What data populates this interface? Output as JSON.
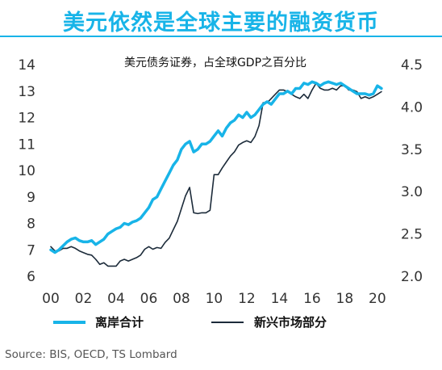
{
  "header": {
    "title": "美元依然是全球主要的融资货币"
  },
  "source": "Source: BIS, OECD, TS Lombard",
  "colors": {
    "title": "#18b4e8",
    "series_offshore": "#18b4e8",
    "series_em": "#1c2b3a"
  },
  "chart_data": {
    "type": "line",
    "title": "美元债务证券，占全球GDP之百分比",
    "x_tick_labels": [
      "00",
      "02",
      "04",
      "06",
      "08",
      "10",
      "12",
      "14",
      "16",
      "18",
      "20"
    ],
    "x_tick_values": [
      2000,
      2002,
      2004,
      2006,
      2008,
      2010,
      2012,
      2014,
      2016,
      2018,
      2020
    ],
    "xlim": [
      2000,
      2020.6
    ],
    "y_left": {
      "ylim": [
        6,
        14
      ],
      "ticks": [
        6,
        7,
        8,
        9,
        10,
        11,
        12,
        13,
        14
      ]
    },
    "y_right": {
      "ylim": [
        2.0,
        4.5
      ],
      "ticks": [
        "2.0",
        "2.5",
        "3.0",
        "3.5",
        "4.0",
        "4.5"
      ]
    },
    "grid": false,
    "legend_position": "bottom",
    "series": [
      {
        "name": "离岸合计",
        "axis": "left",
        "points": [
          [
            2000.0,
            7.0
          ],
          [
            2000.25,
            6.9
          ],
          [
            2000.5,
            7.0
          ],
          [
            2000.75,
            7.15
          ],
          [
            2001.0,
            7.3
          ],
          [
            2001.25,
            7.4
          ],
          [
            2001.5,
            7.45
          ],
          [
            2001.75,
            7.35
          ],
          [
            2002.0,
            7.3
          ],
          [
            2002.25,
            7.3
          ],
          [
            2002.5,
            7.35
          ],
          [
            2002.75,
            7.2
          ],
          [
            2003.0,
            7.3
          ],
          [
            2003.25,
            7.4
          ],
          [
            2003.5,
            7.6
          ],
          [
            2003.75,
            7.7
          ],
          [
            2004.0,
            7.8
          ],
          [
            2004.25,
            7.85
          ],
          [
            2004.5,
            8.0
          ],
          [
            2004.75,
            7.95
          ],
          [
            2005.0,
            8.05
          ],
          [
            2005.25,
            8.1
          ],
          [
            2005.5,
            8.2
          ],
          [
            2005.75,
            8.4
          ],
          [
            2006.0,
            8.6
          ],
          [
            2006.25,
            8.9
          ],
          [
            2006.5,
            9.0
          ],
          [
            2006.75,
            9.3
          ],
          [
            2007.0,
            9.6
          ],
          [
            2007.25,
            9.9
          ],
          [
            2007.5,
            10.2
          ],
          [
            2007.75,
            10.4
          ],
          [
            2008.0,
            10.8
          ],
          [
            2008.25,
            11.0
          ],
          [
            2008.5,
            11.1
          ],
          [
            2008.75,
            10.7
          ],
          [
            2009.0,
            10.8
          ],
          [
            2009.25,
            11.0
          ],
          [
            2009.5,
            11.0
          ],
          [
            2009.75,
            11.1
          ],
          [
            2010.0,
            11.3
          ],
          [
            2010.25,
            11.5
          ],
          [
            2010.5,
            11.3
          ],
          [
            2010.75,
            11.6
          ],
          [
            2011.0,
            11.8
          ],
          [
            2011.25,
            11.9
          ],
          [
            2011.5,
            12.1
          ],
          [
            2011.75,
            12.0
          ],
          [
            2012.0,
            12.2
          ],
          [
            2012.25,
            12.0
          ],
          [
            2012.5,
            12.1
          ],
          [
            2012.75,
            12.3
          ],
          [
            2013.0,
            12.5
          ],
          [
            2013.25,
            12.6
          ],
          [
            2013.5,
            12.5
          ],
          [
            2013.75,
            12.7
          ],
          [
            2014.0,
            12.9
          ],
          [
            2014.25,
            12.9
          ],
          [
            2014.5,
            13.0
          ],
          [
            2014.75,
            12.9
          ],
          [
            2015.0,
            13.1
          ],
          [
            2015.25,
            13.1
          ],
          [
            2015.5,
            13.3
          ],
          [
            2015.75,
            13.25
          ],
          [
            2016.0,
            13.35
          ],
          [
            2016.25,
            13.3
          ],
          [
            2016.5,
            13.2
          ],
          [
            2016.75,
            13.3
          ],
          [
            2017.0,
            13.35
          ],
          [
            2017.25,
            13.3
          ],
          [
            2017.5,
            13.25
          ],
          [
            2017.75,
            13.3
          ],
          [
            2018.0,
            13.2
          ],
          [
            2018.25,
            13.1
          ],
          [
            2018.5,
            13.0
          ],
          [
            2018.75,
            12.9
          ],
          [
            2019.0,
            12.9
          ],
          [
            2019.25,
            12.9
          ],
          [
            2019.5,
            12.85
          ],
          [
            2019.75,
            12.9
          ],
          [
            2020.0,
            13.2
          ],
          [
            2020.25,
            13.1
          ]
        ]
      },
      {
        "name": "新兴市场部分",
        "axis": "right",
        "points": [
          [
            2000.0,
            2.35
          ],
          [
            2000.25,
            2.3
          ],
          [
            2000.5,
            2.3
          ],
          [
            2000.75,
            2.33
          ],
          [
            2001.0,
            2.33
          ],
          [
            2001.25,
            2.35
          ],
          [
            2001.5,
            2.33
          ],
          [
            2001.75,
            2.3
          ],
          [
            2002.0,
            2.28
          ],
          [
            2002.25,
            2.26
          ],
          [
            2002.5,
            2.25
          ],
          [
            2002.75,
            2.2
          ],
          [
            2003.0,
            2.14
          ],
          [
            2003.25,
            2.16
          ],
          [
            2003.5,
            2.12
          ],
          [
            2003.75,
            2.12
          ],
          [
            2004.0,
            2.12
          ],
          [
            2004.25,
            2.18
          ],
          [
            2004.5,
            2.2
          ],
          [
            2004.75,
            2.18
          ],
          [
            2005.0,
            2.2
          ],
          [
            2005.25,
            2.22
          ],
          [
            2005.5,
            2.25
          ],
          [
            2005.75,
            2.32
          ],
          [
            2006.0,
            2.35
          ],
          [
            2006.25,
            2.32
          ],
          [
            2006.5,
            2.34
          ],
          [
            2006.75,
            2.33
          ],
          [
            2007.0,
            2.4
          ],
          [
            2007.25,
            2.45
          ],
          [
            2007.5,
            2.55
          ],
          [
            2007.75,
            2.65
          ],
          [
            2008.0,
            2.8
          ],
          [
            2008.25,
            2.95
          ],
          [
            2008.5,
            3.05
          ],
          [
            2008.75,
            2.75
          ],
          [
            2009.0,
            2.74
          ],
          [
            2009.25,
            2.75
          ],
          [
            2009.5,
            2.75
          ],
          [
            2009.75,
            2.78
          ],
          [
            2010.0,
            3.2
          ],
          [
            2010.25,
            3.2
          ],
          [
            2010.5,
            3.28
          ],
          [
            2010.75,
            3.35
          ],
          [
            2011.0,
            3.42
          ],
          [
            2011.25,
            3.47
          ],
          [
            2011.5,
            3.55
          ],
          [
            2011.75,
            3.58
          ],
          [
            2012.0,
            3.6
          ],
          [
            2012.25,
            3.58
          ],
          [
            2012.5,
            3.65
          ],
          [
            2012.75,
            3.78
          ],
          [
            2013.0,
            4.05
          ],
          [
            2013.25,
            4.05
          ],
          [
            2013.5,
            4.1
          ],
          [
            2013.75,
            4.15
          ],
          [
            2014.0,
            4.2
          ],
          [
            2014.25,
            4.2
          ],
          [
            2014.5,
            4.18
          ],
          [
            2014.75,
            4.15
          ],
          [
            2015.0,
            4.12
          ],
          [
            2015.25,
            4.1
          ],
          [
            2015.5,
            4.15
          ],
          [
            2015.75,
            4.1
          ],
          [
            2016.0,
            4.2
          ],
          [
            2016.25,
            4.28
          ],
          [
            2016.5,
            4.22
          ],
          [
            2016.75,
            4.2
          ],
          [
            2017.0,
            4.2
          ],
          [
            2017.25,
            4.22
          ],
          [
            2017.5,
            4.2
          ],
          [
            2017.75,
            4.25
          ],
          [
            2018.0,
            4.25
          ],
          [
            2018.25,
            4.2
          ],
          [
            2018.5,
            4.2
          ],
          [
            2018.75,
            4.18
          ],
          [
            2019.0,
            4.1
          ],
          [
            2019.25,
            4.12
          ],
          [
            2019.5,
            4.1
          ],
          [
            2019.75,
            4.12
          ],
          [
            2020.0,
            4.15
          ],
          [
            2020.25,
            4.18
          ]
        ]
      }
    ]
  }
}
